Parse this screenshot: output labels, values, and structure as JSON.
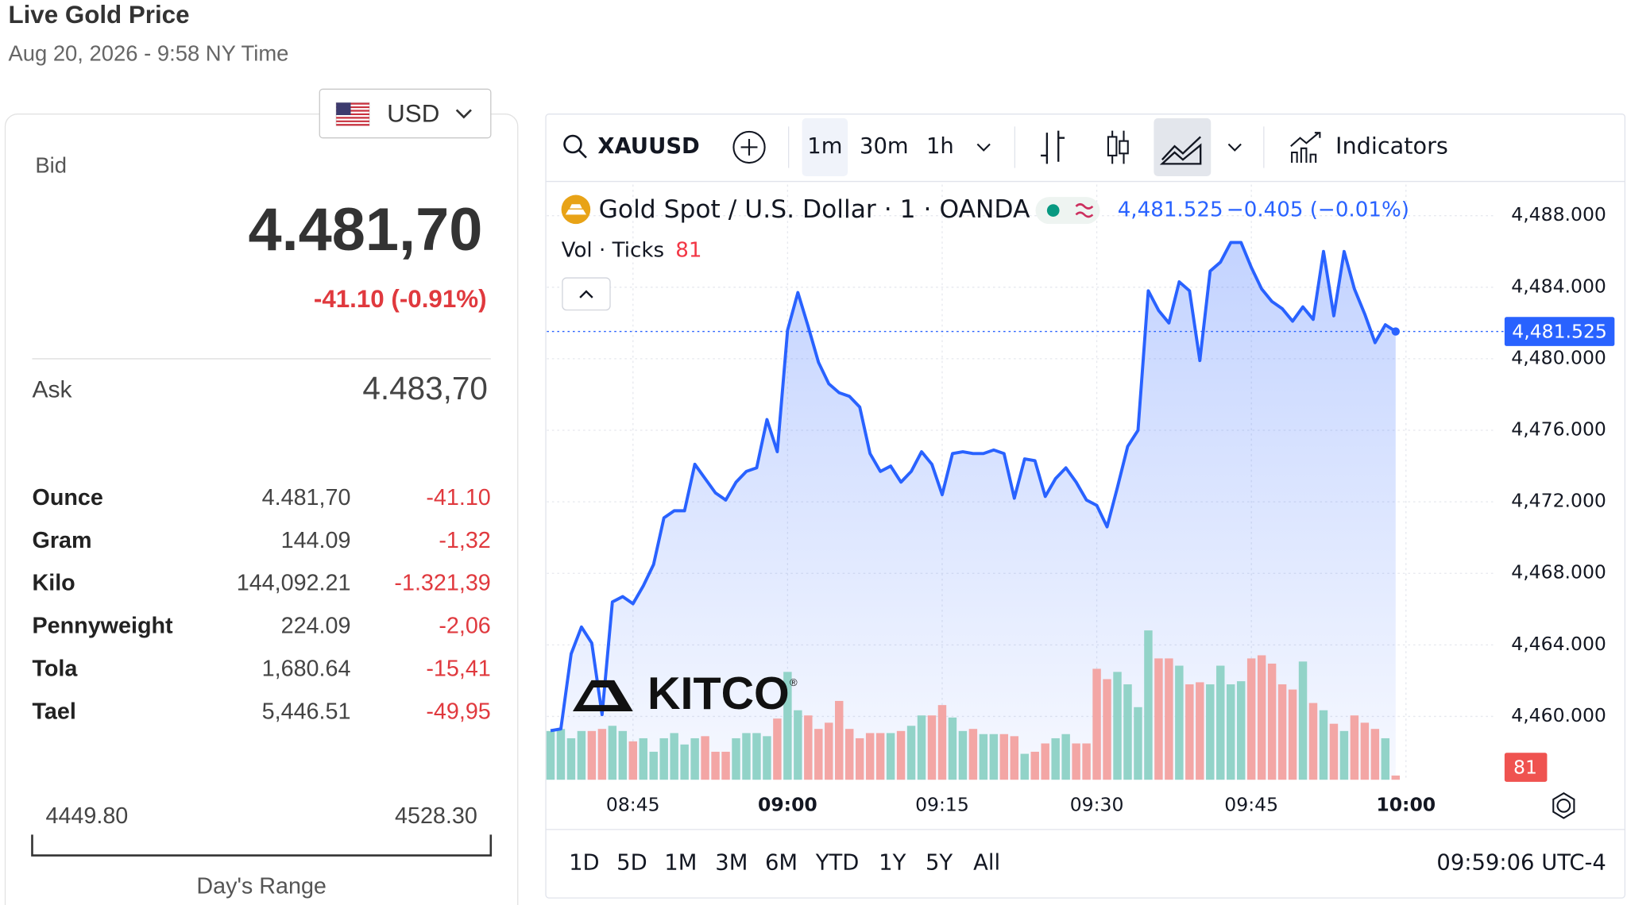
{
  "header": {
    "title": "Live Gold Price",
    "subtitle": "Aug 20, 2026 - 9:58 NY Time"
  },
  "price_panel": {
    "currency": "USD",
    "bid_label": "Bid",
    "bid": "4.481,70",
    "change": "-41.10 (-0.91%)",
    "ask_label": "Ask",
    "ask": "4.483,70",
    "rows": [
      [
        "Ounce",
        "4.481,70",
        "-41.10"
      ],
      [
        "Gram",
        "144.09",
        "-1,32"
      ],
      [
        "Kilo",
        "144,092.21",
        "-1.321,39"
      ],
      [
        "Pennyweight",
        "224.09",
        "-2,06"
      ],
      [
        "Tola",
        "1,680.64",
        "-15,41"
      ],
      [
        "Tael",
        "5,446.51",
        "-49,95"
      ]
    ],
    "range_low": "4449.80",
    "range_high": "4528.30",
    "range_label": "Day's Range"
  },
  "toolbar": {
    "symbol": "XAUUSD",
    "intervals": [
      "1m",
      "30m",
      "1h"
    ],
    "indicators": "Indicators"
  },
  "watermark": {
    "text": "KITCO",
    "mark": "®"
  },
  "footer": {
    "ranges": [
      "1D",
      "5D",
      "1M",
      "3M",
      "6M",
      "YTD",
      "1Y",
      "5Y",
      "All"
    ],
    "time": "09:59:06 UTC-4"
  },
  "chart_data": {
    "type": "line",
    "legend": {
      "price": "4,481.525",
      "change": "−0.405 (−0.01%)"
    },
    "last_label": "4,481.525",
    "x": [
      517,
      518,
      519,
      520,
      521,
      522,
      523,
      524,
      525,
      526,
      527,
      528,
      529,
      530,
      531,
      532,
      533,
      534,
      535,
      536,
      537,
      538,
      539,
      540,
      541,
      542,
      543,
      544,
      545,
      546,
      547,
      548,
      549,
      550,
      551,
      552,
      553,
      554,
      555,
      556,
      557,
      558,
      559,
      560,
      561,
      562,
      563,
      564,
      565,
      566,
      567,
      568,
      569,
      570,
      571,
      572,
      573,
      574,
      575,
      576,
      577,
      578,
      579,
      580,
      581,
      582,
      583,
      584,
      585,
      586,
      587,
      588,
      589,
      590,
      591,
      592,
      593,
      594,
      595,
      596,
      597,
      598,
      599
    ],
    "series": [
      {
        "name": "Gold Spot / U.S. Dollar · 1 · OANDA",
        "color": "#2962ff",
        "values": [
          4459.2,
          4459.3,
          4463.5,
          4465.0,
          4464.1,
          4460.1,
          4466.4,
          4466.7,
          4466.3,
          4467.3,
          4468.5,
          4471.1,
          4471.5,
          4471.5,
          4474.1,
          4473.3,
          4472.5,
          4472.1,
          4473.1,
          4473.7,
          4473.9,
          4476.6,
          4474.8,
          4481.6,
          4483.7,
          4481.8,
          4479.8,
          4478.6,
          4478.1,
          4477.9,
          4477.3,
          4474.7,
          4473.7,
          4474.0,
          4473.1,
          4473.7,
          4474.8,
          4474.1,
          4472.4,
          4474.7,
          4474.8,
          4474.7,
          4474.7,
          4474.9,
          4474.7,
          4472.2,
          4474.4,
          4474.3,
          4472.3,
          4473.3,
          4473.9,
          4473.1,
          4472.1,
          4471.8,
          4470.6,
          4472.8,
          4475.1,
          4476.0,
          4483.8,
          4482.7,
          4482.0,
          4484.3,
          4483.8,
          4479.9,
          4484.9,
          4485.4,
          4486.5,
          4486.5,
          4485.1,
          4483.9,
          4483.2,
          4482.8,
          4482.1,
          4482.9,
          4482.2,
          4486.0,
          4482.4,
          4486.0,
          4483.9,
          4482.5,
          4480.9,
          4481.9,
          4481.525
        ]
      },
      {
        "name": "Vol · Ticks",
        "type": "bar",
        "axis": "y2",
        "up_color": "#92d3c8",
        "down_color": "#f3a6a5",
        "values": [
          940,
          980,
          800,
          940,
          940,
          980,
          1040,
          940,
          740,
          800,
          540,
          800,
          900,
          680,
          800,
          840,
          540,
          540,
          800,
          900,
          900,
          840,
          1180,
          2080,
          1340,
          1240,
          980,
          1100,
          1520,
          980,
          800,
          900,
          900,
          900,
          940,
          1040,
          1240,
          1240,
          1440,
          1200,
          940,
          980,
          880,
          880,
          880,
          840,
          500,
          540,
          700,
          800,
          880,
          700,
          700,
          2140,
          1940,
          2080,
          1840,
          1400,
          2880,
          2340,
          2340,
          2200,
          1840,
          1880,
          1840,
          2200,
          1840,
          1900,
          2340,
          2400,
          2240,
          1840,
          1740,
          2280,
          1480,
          1340,
          1080,
          940,
          1240,
          1100,
          980,
          800,
          81
        ]
      }
    ],
    "xlim": [
      516.64,
      608.56
    ],
    "xticks": [
      {
        "value": 525,
        "label": "08:45"
      },
      {
        "value": 540,
        "label": "09:00"
      },
      {
        "value": 555,
        "label": "09:15"
      },
      {
        "value": 570,
        "label": "09:30"
      },
      {
        "value": 585,
        "label": "09:45"
      },
      {
        "value": 600,
        "label": "10:00"
      }
    ],
    "ylim": [
      4456.46,
      4489.74
    ],
    "yticks": [
      {
        "value": 4460,
        "label": "4,460.000"
      },
      {
        "value": 4464,
        "label": "4,464.000"
      },
      {
        "value": 4468,
        "label": "4,468.000"
      },
      {
        "value": 4472,
        "label": "4,472.000"
      },
      {
        "value": 4476,
        "label": "4,476.000"
      },
      {
        "value": 4480,
        "label": "4,480.000"
      },
      {
        "value": 4484,
        "label": "4,484.000"
      },
      {
        "value": 4488,
        "label": "4,488.000"
      }
    ],
    "y2lim": [
      0,
      11480
    ],
    "grid": true
  }
}
